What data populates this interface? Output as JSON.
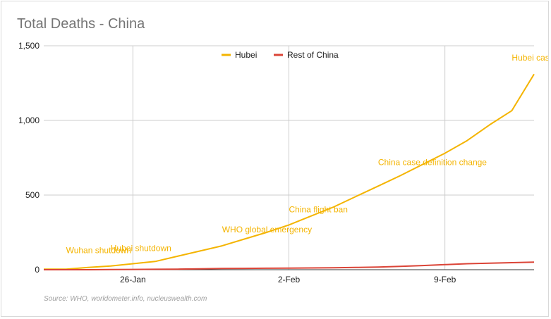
{
  "chart_data": {
    "type": "line",
    "title": "Total Deaths - China",
    "source": "Source: WHO, worldometer.info, nucleuswealth.com",
    "legend_position": "top",
    "grid": true,
    "x": [
      "2020-01-22",
      "2020-01-23",
      "2020-01-24",
      "2020-01-25",
      "2020-01-26",
      "2020-01-27",
      "2020-01-28",
      "2020-01-29",
      "2020-01-30",
      "2020-01-31",
      "2020-02-01",
      "2020-02-02",
      "2020-02-03",
      "2020-02-04",
      "2020-02-05",
      "2020-02-06",
      "2020-02-07",
      "2020-02-08",
      "2020-02-09",
      "2020-02-10",
      "2020-02-11",
      "2020-02-12",
      "2020-02-13"
    ],
    "xticks": [
      {
        "date": "2020-01-26",
        "label": "26-Jan"
      },
      {
        "date": "2020-02-02",
        "label": "2-Feb"
      },
      {
        "date": "2020-02-09",
        "label": "9-Feb"
      }
    ],
    "xlim": [
      "2020-01-22",
      "2020-02-13"
    ],
    "ylim": [
      0,
      1500
    ],
    "yticks": [
      {
        "value": 0,
        "label": "0"
      },
      {
        "value": 500,
        "label": "500"
      },
      {
        "value": 1000,
        "label": "1,000"
      },
      {
        "value": 1500,
        "label": "1,500"
      }
    ],
    "series": [
      {
        "name": "Hubei",
        "color": "#f4b400",
        "values": [
          4,
          4,
          15,
          25,
          40,
          55,
          90,
          125,
          160,
          205,
          250,
          300,
          360,
          420,
          490,
          560,
          630,
          705,
          780,
          865,
          970,
          1065,
          1310
        ]
      },
      {
        "name": "Rest of China",
        "color": "#db4437",
        "values": [
          0,
          0,
          0,
          1,
          2,
          3,
          4,
          6,
          8,
          9,
          10,
          11,
          12,
          13,
          15,
          18,
          22,
          28,
          34,
          40,
          44,
          47,
          51
        ]
      }
    ],
    "annotations": [
      {
        "text": "Wuhan shutdown",
        "date": "2020-01-23",
        "value": 110
      },
      {
        "text": "Hubei shutdown",
        "date": "2020-01-25",
        "value": 125
      },
      {
        "text": "WHO global emergency",
        "date": "2020-01-30",
        "value": 250
      },
      {
        "text": "China flight ban",
        "date": "2020-02-02",
        "value": 385
      },
      {
        "text": "China case definition change",
        "date": "2020-02-06",
        "value": 700
      },
      {
        "text": "Hubei case definition",
        "date": "2020-02-12",
        "value": 1400
      }
    ]
  }
}
